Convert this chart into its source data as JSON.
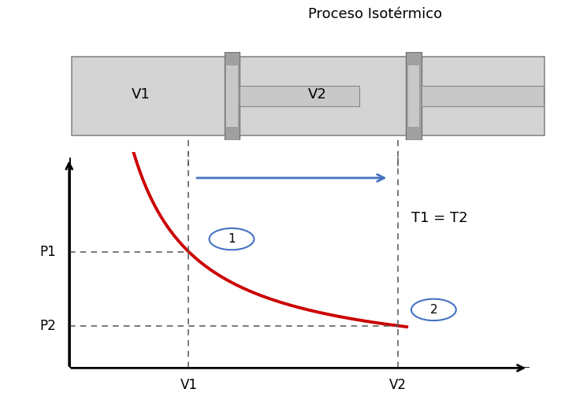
{
  "title": "Proceso Isotérmico",
  "title_fontsize": 13,
  "bg_color": "#ffffff",
  "curve_color": "#cc0000",
  "curve_lw": 2.8,
  "v1": 2.0,
  "v2": 5.5,
  "k": 7.0,
  "x_min": 0.0,
  "x_max": 8.0,
  "y_min": 0.0,
  "y_max": 6.5,
  "label_p1": "P1",
  "label_p2": "P2",
  "label_v1": "V1",
  "label_v2": "V2",
  "t_label": "T1 = T2",
  "arrow_color": "#4472c4",
  "dashed_color": "#555555",
  "circle_color": "#4472c4",
  "axis_color": "#000000",
  "cyl_facecolor": "#d4d4d4",
  "cyl_edgecolor": "#888888",
  "piston_facecolor": "#b0b0b0",
  "piston_edgecolor": "#777777",
  "rod_facecolor": "#c8c8c8",
  "rod_edgecolor": "#888888"
}
